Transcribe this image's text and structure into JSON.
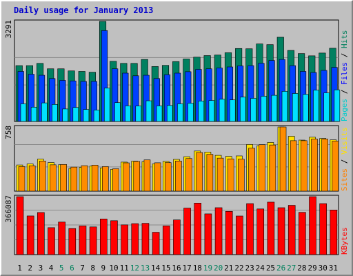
{
  "page": {
    "title": "Daily usage for January 2013",
    "colors": {
      "background": "#c0c0c0",
      "frame_light": "#ffffff",
      "frame_dark": "#808080",
      "grid": "#8a8a8a",
      "title": "#0000cc",
      "day_default": "#000000",
      "day_weekend": "#00805c"
    }
  },
  "chart_data": [
    {
      "type": "bar",
      "panel": "top",
      "ylabel": "3291",
      "ymax": 3291,
      "categories": [
        "1",
        "2",
        "3",
        "4",
        "5",
        "6",
        "7",
        "8",
        "9",
        "10",
        "11",
        "12",
        "13",
        "14",
        "15",
        "16",
        "17",
        "18",
        "19",
        "20",
        "21",
        "22",
        "23",
        "24",
        "25",
        "26",
        "27",
        "28",
        "29",
        "30",
        "31"
      ],
      "weekend_days": [
        "5",
        "6",
        "12",
        "13",
        "19",
        "20",
        "26",
        "27"
      ],
      "side_labels": [
        {
          "text": "Pages",
          "color": "#00cccc"
        },
        {
          "text": " / ",
          "color": "#000000"
        },
        {
          "text": "Files",
          "color": "#0000ff"
        },
        {
          "text": " / ",
          "color": "#000000"
        },
        {
          "text": "Hits",
          "color": "#00805c"
        }
      ],
      "series": [
        {
          "name": "Hits",
          "color": "#008060",
          "values": [
            1837,
            1837,
            1910,
            1732,
            1732,
            1663,
            1646,
            1620,
            3291,
            1979,
            1910,
            1910,
            2040,
            1807,
            1845,
            1970,
            2055,
            2115,
            2167,
            2184,
            2261,
            2400,
            2391,
            2550,
            2527,
            2770,
            2337,
            2233,
            2159,
            2250,
            2408
          ]
        },
        {
          "name": "Files",
          "color": "#0040ff",
          "values": [
            1646,
            1553,
            1520,
            1412,
            1351,
            1334,
            1317,
            1317,
            2990,
            1732,
            1589,
            1503,
            1520,
            1412,
            1537,
            1589,
            1637,
            1713,
            1732,
            1758,
            1793,
            1827,
            1837,
            1914,
            2006,
            2040,
            1836,
            1646,
            1610,
            1679,
            1779
          ]
        },
        {
          "name": "Pages",
          "color": "#00e0ff",
          "values": [
            580,
            470,
            610,
            560,
            411,
            460,
            394,
            375,
            1097,
            620,
            512,
            507,
            680,
            511,
            526,
            580,
            600,
            670,
            690,
            730,
            710,
            800,
            760,
            830,
            860,
            990,
            920,
            890,
            1030,
            940,
            1040
          ]
        }
      ]
    },
    {
      "type": "bar",
      "panel": "middle",
      "ylabel": "758",
      "ymax": 758,
      "categories": [
        "1",
        "2",
        "3",
        "4",
        "5",
        "6",
        "7",
        "8",
        "9",
        "10",
        "11",
        "12",
        "13",
        "14",
        "15",
        "16",
        "17",
        "18",
        "19",
        "20",
        "21",
        "22",
        "23",
        "24",
        "25",
        "26",
        "27",
        "28",
        "29",
        "30",
        "31"
      ],
      "side_labels": [
        {
          "text": "Sites",
          "color": "#ff8000"
        },
        {
          "text": " / ",
          "color": "#000000"
        },
        {
          "text": "Visits",
          "color": "#ffe000"
        }
      ],
      "series": [
        {
          "name": "Visits",
          "color": "#ffe000",
          "values": [
            309,
            322,
            378,
            338,
            312,
            269,
            281,
            296,
            275,
            258,
            343,
            355,
            349,
            322,
            351,
            375,
            407,
            474,
            462,
            423,
            411,
            416,
            551,
            537,
            575,
            758,
            648,
            603,
            637,
            623,
            606
          ]
        },
        {
          "name": "Sites",
          "color": "#ff8c00",
          "values": [
            290,
            300,
            356,
            311,
            315,
            284,
            301,
            307,
            290,
            264,
            334,
            351,
            369,
            335,
            337,
            356,
            385,
            456,
            435,
            390,
            381,
            378,
            507,
            549,
            545,
            758,
            596,
            596,
            615,
            615,
            591
          ]
        }
      ]
    },
    {
      "type": "bar",
      "panel": "bottom",
      "ylabel": "366087",
      "ymax": 366087,
      "categories": [
        "1",
        "2",
        "3",
        "4",
        "5",
        "6",
        "7",
        "8",
        "9",
        "10",
        "11",
        "12",
        "13",
        "14",
        "15",
        "16",
        "17",
        "18",
        "19",
        "20",
        "21",
        "22",
        "23",
        "24",
        "25",
        "26",
        "27",
        "28",
        "29",
        "30",
        "31"
      ],
      "side_labels": [
        {
          "text": "KBytes",
          "color": "#ff0000"
        }
      ],
      "series": [
        {
          "name": "KBytes",
          "color": "#ff0000",
          "values": [
            366087,
            244305,
            266112,
            170469,
            205578,
            164976,
            181506,
            175089,
            225270,
            214278,
            188010,
            195696,
            197688,
            141309,
            181506,
            219213,
            293985,
            325536,
            257415,
            296418,
            273339,
            243966,
            322173,
            288489,
            331470,
            296418,
            311430,
            267117,
            366087,
            322173,
            281970
          ]
        }
      ]
    }
  ]
}
